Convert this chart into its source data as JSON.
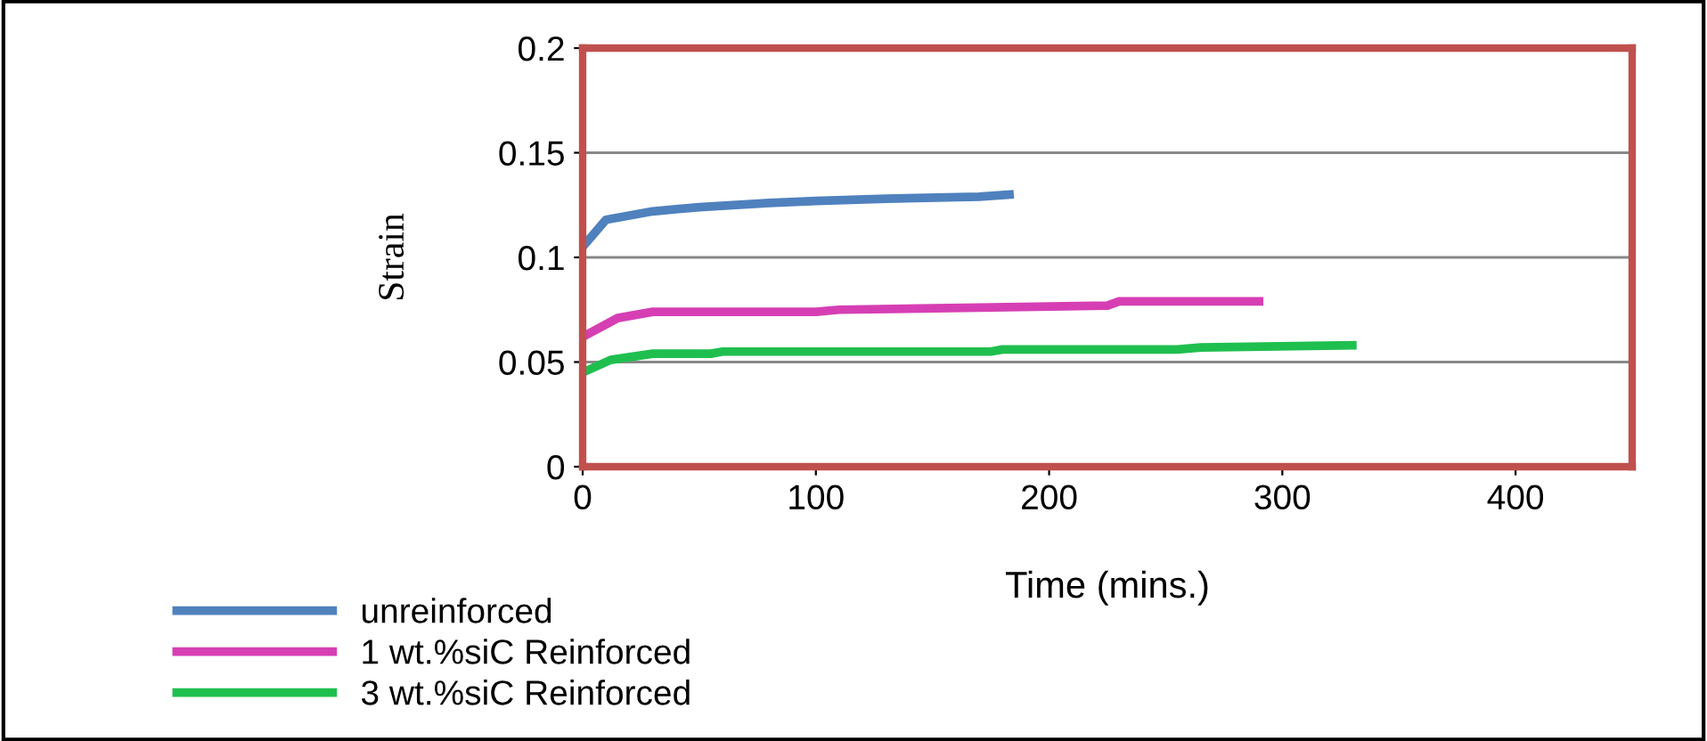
{
  "chart_data": {
    "type": "line",
    "xlabel": "Time (mins.)",
    "ylabel": "Strain",
    "xlim": [
      0,
      450
    ],
    "xticks": [
      0,
      100,
      200,
      300,
      400
    ],
    "ylim": [
      0,
      0.2
    ],
    "yticks": [
      0,
      0.05,
      0.1,
      0.15,
      0.2
    ],
    "grid": "y",
    "legend": "bottom left",
    "marker": "none",
    "line_style": "solid",
    "series": [
      {
        "name": "unreinforced",
        "color": "#4f81bd",
        "x": [
          0,
          10,
          30,
          50,
          80,
          100,
          130,
          170,
          183
        ],
        "values": [
          0.105,
          0.118,
          0.122,
          0.124,
          0.126,
          0.127,
          0.128,
          0.129,
          0.13
        ]
      },
      {
        "name": "1 wt.%siC Reinforced",
        "color": "#d63fb4",
        "x": [
          0,
          15,
          30,
          100,
          110,
          170,
          225,
          230,
          290
        ],
        "values": [
          0.062,
          0.071,
          0.074,
          0.074,
          0.075,
          0.076,
          0.077,
          0.079,
          0.079
        ]
      },
      {
        "name": "3 wt.%siC Reinforced",
        "color": "#1fbf4f",
        "x": [
          0,
          12,
          30,
          55,
          60,
          175,
          180,
          255,
          265,
          330
        ],
        "values": [
          0.045,
          0.051,
          0.054,
          0.054,
          0.055,
          0.055,
          0.056,
          0.056,
          0.057,
          0.058
        ]
      }
    ]
  }
}
